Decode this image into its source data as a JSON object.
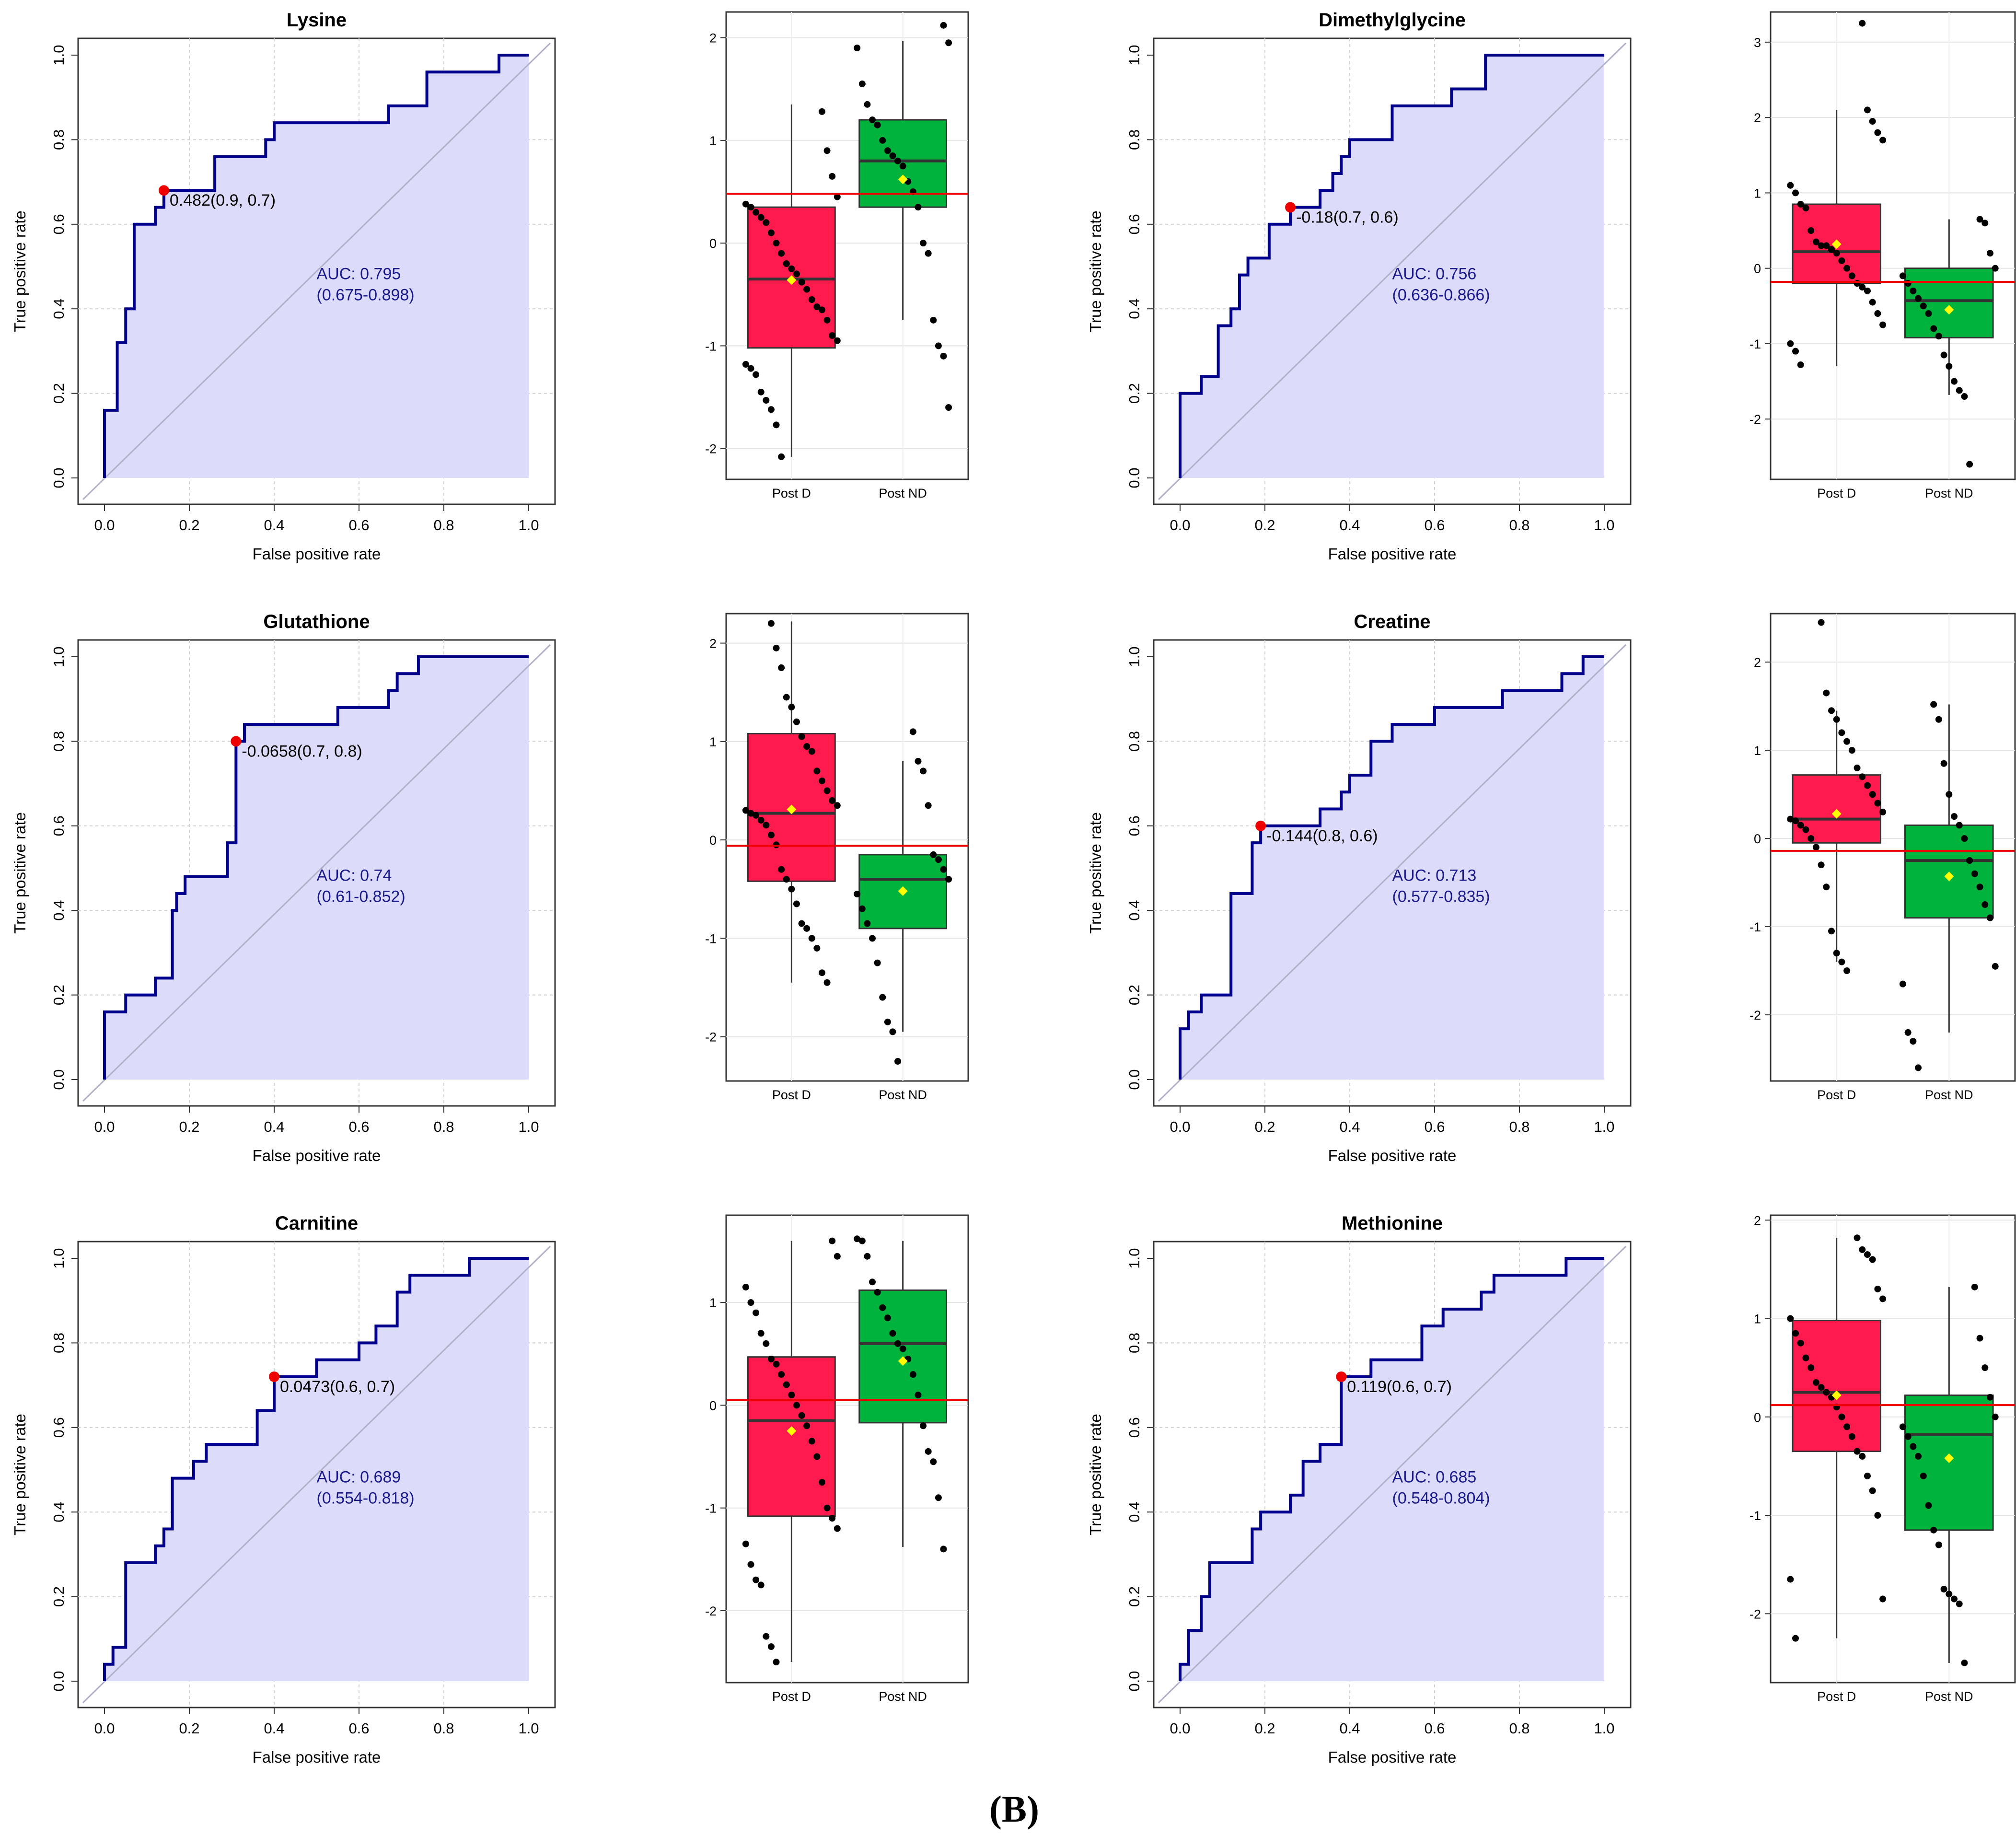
{
  "figure": {
    "caption": "(B)"
  },
  "colors": {
    "roc_fill": "#dcdcfa",
    "roc_line": "#00008b",
    "cutoff_point": "#ee0000",
    "auc_text": "#1a1a8c",
    "box_post_d": "#ff1a4d",
    "box_post_nd": "#00b33c",
    "mean_marker": "#ffff00",
    "threshold_line": "#ee0000",
    "diagonal": "#b0b0c8"
  },
  "roc_axis": {
    "xlabel": "False positive rate",
    "ylabel": "True positive rate",
    "ticks": [
      "0.0",
      "0.2",
      "0.4",
      "0.6",
      "0.8",
      "1.0"
    ]
  },
  "box_axis": {
    "categories": [
      "Post D",
      "Post ND"
    ]
  },
  "chart_data": [
    {
      "type": "line",
      "panel": "roc-lysine",
      "title": "Lysine",
      "xlabel": "False positive rate",
      "ylabel": "True positive rate",
      "xlim": [
        0,
        1
      ],
      "ylim": [
        0,
        1
      ],
      "x": [
        0,
        0,
        0.03,
        0.03,
        0.05,
        0.05,
        0.07,
        0.07,
        0.12,
        0.12,
        0.14,
        0.14,
        0.26,
        0.26,
        0.38,
        0.38,
        0.4,
        0.4,
        0.67,
        0.67,
        0.76,
        0.76,
        0.93,
        0.93,
        1.0
      ],
      "y": [
        0,
        0.16,
        0.16,
        0.32,
        0.32,
        0.4,
        0.4,
        0.6,
        0.6,
        0.64,
        0.64,
        0.68,
        0.68,
        0.76,
        0.76,
        0.8,
        0.8,
        0.84,
        0.84,
        0.88,
        0.88,
        0.96,
        0.96,
        1.0,
        1.0
      ],
      "cutoff": {
        "fpr": 0.14,
        "tpr": 0.68,
        "label": "0.482(0.9, 0.7)"
      },
      "auc_text": "AUC: 0.795",
      "ci_text": "(0.675-0.898)"
    },
    {
      "type": "box",
      "panel": "box-lysine",
      "categories": [
        "Post D",
        "Post ND"
      ],
      "ylim": [
        -2.3,
        2.25
      ],
      "yticks": [
        "-2",
        "-1",
        "0",
        "1",
        "2"
      ],
      "ytick_values": [
        -2,
        -1,
        0,
        1,
        2
      ],
      "threshold": 0.48,
      "series": [
        {
          "name": "Post D",
          "q1": -1.02,
          "median": -0.35,
          "q3": 0.35,
          "mean": -0.36,
          "whisker_low": -2.08,
          "whisker_high": 1.35,
          "points": [
            -2.08,
            -1.77,
            -1.62,
            -1.53,
            -1.45,
            -1.28,
            -1.22,
            -1.18,
            -0.95,
            -0.9,
            -0.75,
            -0.65,
            -0.62,
            -0.55,
            -0.45,
            -0.38,
            -0.3,
            -0.25,
            -0.2,
            -0.1,
            0.0,
            0.1,
            0.2,
            0.25,
            0.3,
            0.35,
            0.38,
            0.45,
            0.65,
            0.9,
            1.28
          ]
        },
        {
          "name": "Post ND",
          "q1": 0.35,
          "median": 0.8,
          "q3": 1.2,
          "mean": 0.62,
          "whisker_low": -0.75,
          "whisker_high": 1.97,
          "points": [
            -1.6,
            -1.1,
            -1.0,
            -0.75,
            -0.1,
            0.0,
            0.35,
            0.5,
            0.6,
            0.75,
            0.8,
            0.85,
            0.9,
            1.0,
            1.15,
            1.2,
            1.35,
            1.55,
            1.9,
            1.95,
            2.12
          ]
        }
      ]
    },
    {
      "type": "line",
      "panel": "roc-dimethylglycine",
      "title": "Dimethylglycine",
      "xlabel": "False positive rate",
      "ylabel": "True positive rate",
      "xlim": [
        0,
        1
      ],
      "ylim": [
        0,
        1
      ],
      "x": [
        0,
        0,
        0.05,
        0.05,
        0.09,
        0.09,
        0.12,
        0.12,
        0.14,
        0.14,
        0.16,
        0.16,
        0.21,
        0.21,
        0.26,
        0.26,
        0.33,
        0.33,
        0.36,
        0.36,
        0.38,
        0.38,
        0.4,
        0.4,
        0.5,
        0.5,
        0.64,
        0.64,
        0.72,
        0.72,
        1.0
      ],
      "y": [
        0,
        0.2,
        0.2,
        0.24,
        0.24,
        0.36,
        0.36,
        0.4,
        0.4,
        0.48,
        0.48,
        0.52,
        0.52,
        0.6,
        0.6,
        0.64,
        0.64,
        0.68,
        0.68,
        0.72,
        0.72,
        0.76,
        0.76,
        0.8,
        0.8,
        0.88,
        0.88,
        0.92,
        0.92,
        1.0,
        1.0
      ],
      "cutoff": {
        "fpr": 0.26,
        "tpr": 0.64,
        "label": "-0.18(0.7, 0.6)"
      },
      "auc_text": "AUC: 0.756",
      "ci_text": "(0.636-0.866)"
    },
    {
      "type": "box",
      "panel": "box-dimethylglycine",
      "categories": [
        "Post D",
        "Post ND"
      ],
      "ylim": [
        -2.8,
        3.4
      ],
      "yticks": [
        "-2",
        "-1",
        "0",
        "1",
        "2",
        "3"
      ],
      "ytick_values": [
        -2,
        -1,
        0,
        1,
        2,
        3
      ],
      "threshold": -0.18,
      "series": [
        {
          "name": "Post D",
          "q1": -0.2,
          "median": 0.22,
          "q3": 0.85,
          "mean": 0.32,
          "whisker_low": -1.3,
          "whisker_high": 2.1,
          "points": [
            -1.28,
            -1.1,
            -1.0,
            -0.75,
            -0.6,
            -0.45,
            -0.3,
            -0.25,
            -0.2,
            -0.1,
            0.0,
            0.1,
            0.2,
            0.25,
            0.3,
            0.3,
            0.35,
            0.5,
            0.8,
            0.85,
            1.0,
            1.1,
            1.7,
            1.8,
            1.95,
            2.1,
            3.25
          ]
        },
        {
          "name": "Post ND",
          "q1": -0.92,
          "median": -0.43,
          "q3": 0.0,
          "mean": -0.55,
          "whisker_low": -1.68,
          "whisker_high": 0.65,
          "points": [
            -2.6,
            -1.7,
            -1.62,
            -1.5,
            -1.3,
            -1.15,
            -0.9,
            -0.8,
            -0.6,
            -0.5,
            -0.4,
            -0.3,
            -0.2,
            -0.1,
            0.0,
            0.2,
            0.6,
            0.65
          ]
        }
      ]
    },
    {
      "type": "line",
      "panel": "roc-glutathione",
      "title": "Glutathione",
      "xlabel": "False positive rate",
      "ylabel": "True positive rate",
      "xlim": [
        0,
        1
      ],
      "ylim": [
        0,
        1
      ],
      "x": [
        0,
        0,
        0.05,
        0.05,
        0.12,
        0.12,
        0.16,
        0.16,
        0.17,
        0.17,
        0.19,
        0.19,
        0.21,
        0.21,
        0.29,
        0.29,
        0.31,
        0.31,
        0.33,
        0.33,
        0.55,
        0.55,
        0.67,
        0.67,
        0.69,
        0.69,
        0.74,
        0.74,
        1.0
      ],
      "y": [
        0,
        0.16,
        0.16,
        0.2,
        0.2,
        0.24,
        0.24,
        0.4,
        0.4,
        0.44,
        0.44,
        0.48,
        0.48,
        0.48,
        0.48,
        0.56,
        0.56,
        0.8,
        0.8,
        0.84,
        0.84,
        0.88,
        0.88,
        0.92,
        0.92,
        0.96,
        0.96,
        1.0,
        1.0
      ],
      "cutoff": {
        "fpr": 0.31,
        "tpr": 0.8,
        "label": "-0.0658(0.7, 0.8)"
      },
      "auc_text": "AUC: 0.74",
      "ci_text": "(0.61-0.852)"
    },
    {
      "type": "box",
      "panel": "box-glutathione",
      "categories": [
        "Post D",
        "Post ND"
      ],
      "ylim": [
        -2.45,
        2.3
      ],
      "yticks": [
        "-2",
        "-1",
        "0",
        "1",
        "2"
      ],
      "ytick_values": [
        -2,
        -1,
        0,
        1,
        2
      ],
      "threshold": -0.06,
      "series": [
        {
          "name": "Post D",
          "q1": -0.42,
          "median": 0.27,
          "q3": 1.08,
          "mean": 0.31,
          "whisker_low": -1.45,
          "whisker_high": 2.22,
          "points": [
            -1.45,
            -1.35,
            -1.1,
            -1.0,
            -0.9,
            -0.85,
            -0.65,
            -0.5,
            -0.4,
            -0.3,
            -0.05,
            0.05,
            0.15,
            0.2,
            0.25,
            0.27,
            0.3,
            0.35,
            0.4,
            0.5,
            0.6,
            0.7,
            0.9,
            0.95,
            1.05,
            1.2,
            1.35,
            1.45,
            1.75,
            1.95,
            2.2
          ]
        },
        {
          "name": "Post ND",
          "q1": -0.9,
          "median": -0.4,
          "q3": -0.15,
          "mean": -0.52,
          "whisker_low": -1.95,
          "whisker_high": 0.8,
          "points": [
            -2.25,
            -1.95,
            -1.85,
            -1.6,
            -1.25,
            -1.0,
            -0.85,
            -0.7,
            -0.55,
            -0.4,
            -0.3,
            -0.2,
            -0.15,
            0.35,
            0.7,
            0.8,
            1.1
          ]
        }
      ]
    },
    {
      "type": "line",
      "panel": "roc-creatine",
      "title": "Creatine",
      "xlabel": "False positive rate",
      "ylabel": "True positive rate",
      "xlim": [
        0,
        1
      ],
      "ylim": [
        0,
        1
      ],
      "x": [
        0,
        0,
        0.02,
        0.02,
        0.05,
        0.05,
        0.12,
        0.12,
        0.17,
        0.17,
        0.19,
        0.19,
        0.33,
        0.33,
        0.38,
        0.38,
        0.4,
        0.4,
        0.45,
        0.45,
        0.5,
        0.5,
        0.6,
        0.6,
        0.76,
        0.76,
        0.9,
        0.9,
        0.95,
        0.95,
        1.0
      ],
      "y": [
        0,
        0.12,
        0.12,
        0.16,
        0.16,
        0.2,
        0.2,
        0.44,
        0.44,
        0.56,
        0.56,
        0.6,
        0.6,
        0.64,
        0.64,
        0.68,
        0.68,
        0.72,
        0.72,
        0.8,
        0.8,
        0.84,
        0.84,
        0.88,
        0.88,
        0.92,
        0.92,
        0.96,
        0.96,
        1.0,
        1.0
      ],
      "cutoff": {
        "fpr": 0.19,
        "tpr": 0.6,
        "label": "-0.144(0.8, 0.6)"
      },
      "auc_text": "AUC: 0.713",
      "ci_text": "(0.577-0.835)"
    },
    {
      "type": "box",
      "panel": "box-creatine",
      "categories": [
        "Post D",
        "Post ND"
      ],
      "ylim": [
        -2.75,
        2.55
      ],
      "yticks": [
        "-2",
        "-1",
        "0",
        "1",
        "2"
      ],
      "ytick_values": [
        -2,
        -1,
        0,
        1,
        2
      ],
      "threshold": -0.14,
      "series": [
        {
          "name": "Post D",
          "q1": -0.05,
          "median": 0.22,
          "q3": 0.72,
          "mean": 0.28,
          "whisker_low": -1.4,
          "whisker_high": 1.45,
          "points": [
            -1.5,
            -1.4,
            -1.3,
            -1.05,
            -0.55,
            -0.3,
            -0.1,
            0.0,
            0.1,
            0.15,
            0.2,
            0.22,
            0.3,
            0.4,
            0.5,
            0.6,
            0.7,
            0.8,
            1.0,
            1.1,
            1.2,
            1.35,
            1.45,
            1.65,
            2.45
          ]
        },
        {
          "name": "Post ND",
          "q1": -0.9,
          "median": -0.25,
          "q3": 0.15,
          "mean": -0.43,
          "whisker_low": -2.2,
          "whisker_high": 1.52,
          "points": [
            -2.6,
            -2.3,
            -2.2,
            -1.65,
            -1.45,
            -0.9,
            -0.75,
            -0.55,
            -0.4,
            -0.25,
            0.0,
            0.15,
            0.25,
            0.5,
            0.85,
            1.35,
            1.52
          ]
        }
      ]
    },
    {
      "type": "line",
      "panel": "roc-carnitine",
      "title": "Carnitine",
      "xlabel": "False positive rate",
      "ylabel": "True positive rate",
      "xlim": [
        0,
        1
      ],
      "ylim": [
        0,
        1
      ],
      "x": [
        0,
        0,
        0.02,
        0.02,
        0.05,
        0.05,
        0.12,
        0.12,
        0.14,
        0.14,
        0.16,
        0.16,
        0.21,
        0.21,
        0.24,
        0.24,
        0.36,
        0.36,
        0.4,
        0.4,
        0.5,
        0.5,
        0.6,
        0.6,
        0.64,
        0.64,
        0.69,
        0.69,
        0.72,
        0.72,
        0.86,
        0.86,
        1.0
      ],
      "y": [
        0,
        0.04,
        0.04,
        0.08,
        0.08,
        0.28,
        0.28,
        0.32,
        0.32,
        0.36,
        0.36,
        0.48,
        0.48,
        0.52,
        0.52,
        0.56,
        0.56,
        0.64,
        0.64,
        0.72,
        0.72,
        0.76,
        0.76,
        0.8,
        0.8,
        0.84,
        0.84,
        0.92,
        0.92,
        0.96,
        0.96,
        1.0,
        1.0
      ],
      "cutoff": {
        "fpr": 0.4,
        "tpr": 0.72,
        "label": "0.0473(0.6, 0.7)"
      },
      "auc_text": "AUC: 0.689",
      "ci_text": "(0.554-0.818)"
    },
    {
      "type": "box",
      "panel": "box-carnitine",
      "categories": [
        "Post D",
        "Post ND"
      ],
      "ylim": [
        -2.7,
        1.85
      ],
      "yticks": [
        "-2",
        "-1",
        "0",
        "1"
      ],
      "ytick_values": [
        -2,
        -1,
        0,
        1
      ],
      "threshold": 0.05,
      "series": [
        {
          "name": "Post D",
          "q1": -1.08,
          "median": -0.15,
          "q3": 0.47,
          "mean": -0.25,
          "whisker_low": -2.5,
          "whisker_high": 1.6,
          "points": [
            -2.5,
            -2.35,
            -2.25,
            -1.75,
            -1.7,
            -1.55,
            -1.35,
            -1.2,
            -1.1,
            -1.0,
            -0.75,
            -0.5,
            -0.35,
            -0.2,
            -0.1,
            0.0,
            0.1,
            0.2,
            0.3,
            0.4,
            0.45,
            0.6,
            0.7,
            0.9,
            1.0,
            1.15,
            1.45,
            1.6
          ]
        },
        {
          "name": "Post ND",
          "q1": -0.17,
          "median": 0.6,
          "q3": 1.12,
          "mean": 0.43,
          "whisker_low": -1.38,
          "whisker_high": 1.6,
          "points": [
            -1.4,
            -0.9,
            -0.55,
            -0.45,
            -0.2,
            0.1,
            0.3,
            0.45,
            0.55,
            0.6,
            0.7,
            0.85,
            0.95,
            1.1,
            1.2,
            1.45,
            1.6,
            1.62
          ]
        }
      ]
    },
    {
      "type": "line",
      "panel": "roc-methionine",
      "title": "Methionine",
      "xlabel": "False positive rate",
      "ylabel": "True positive rate",
      "xlim": [
        0,
        1
      ],
      "ylim": [
        0,
        1
      ],
      "x": [
        0,
        0,
        0.02,
        0.02,
        0.05,
        0.05,
        0.07,
        0.07,
        0.17,
        0.17,
        0.19,
        0.19,
        0.26,
        0.26,
        0.29,
        0.29,
        0.33,
        0.33,
        0.38,
        0.38,
        0.45,
        0.45,
        0.57,
        0.57,
        0.62,
        0.62,
        0.71,
        0.71,
        0.74,
        0.74,
        0.91,
        0.91,
        1.0
      ],
      "y": [
        0,
        0.04,
        0.04,
        0.12,
        0.12,
        0.2,
        0.2,
        0.28,
        0.28,
        0.36,
        0.36,
        0.4,
        0.4,
        0.44,
        0.44,
        0.52,
        0.52,
        0.56,
        0.56,
        0.72,
        0.72,
        0.76,
        0.76,
        0.84,
        0.84,
        0.88,
        0.88,
        0.92,
        0.92,
        0.96,
        0.96,
        1.0,
        1.0
      ],
      "cutoff": {
        "fpr": 0.38,
        "tpr": 0.72,
        "label": "0.119(0.6, 0.7)"
      },
      "auc_text": "AUC: 0.685",
      "ci_text": "(0.548-0.804)"
    },
    {
      "type": "box",
      "panel": "box-methionine",
      "categories": [
        "Post D",
        "Post ND"
      ],
      "ylim": [
        -2.7,
        2.05
      ],
      "yticks": [
        "-2",
        "-1",
        "0",
        "1",
        "2"
      ],
      "ytick_values": [
        -2,
        -1,
        0,
        1,
        2
      ],
      "threshold": 0.12,
      "series": [
        {
          "name": "Post D",
          "q1": -0.35,
          "median": 0.25,
          "q3": 0.98,
          "mean": 0.22,
          "whisker_low": -2.25,
          "whisker_high": 1.82,
          "points": [
            -2.25,
            -1.65,
            -1.85,
            -1.0,
            -0.75,
            -0.6,
            -0.4,
            -0.35,
            -0.2,
            -0.1,
            0.0,
            0.1,
            0.2,
            0.25,
            0.3,
            0.35,
            0.5,
            0.6,
            0.75,
            0.85,
            1.0,
            1.2,
            1.3,
            1.6,
            1.65,
            1.7,
            1.82
          ]
        },
        {
          "name": "Post ND",
          "q1": -1.15,
          "median": -0.18,
          "q3": 0.22,
          "mean": -0.42,
          "whisker_low": -2.5,
          "whisker_high": 1.32,
          "points": [
            -2.5,
            -1.9,
            -1.85,
            -1.8,
            -1.75,
            -1.3,
            -1.15,
            -0.9,
            -0.6,
            -0.4,
            -0.3,
            -0.2,
            -0.1,
            0.0,
            0.2,
            0.5,
            0.8,
            1.32
          ]
        }
      ]
    }
  ]
}
